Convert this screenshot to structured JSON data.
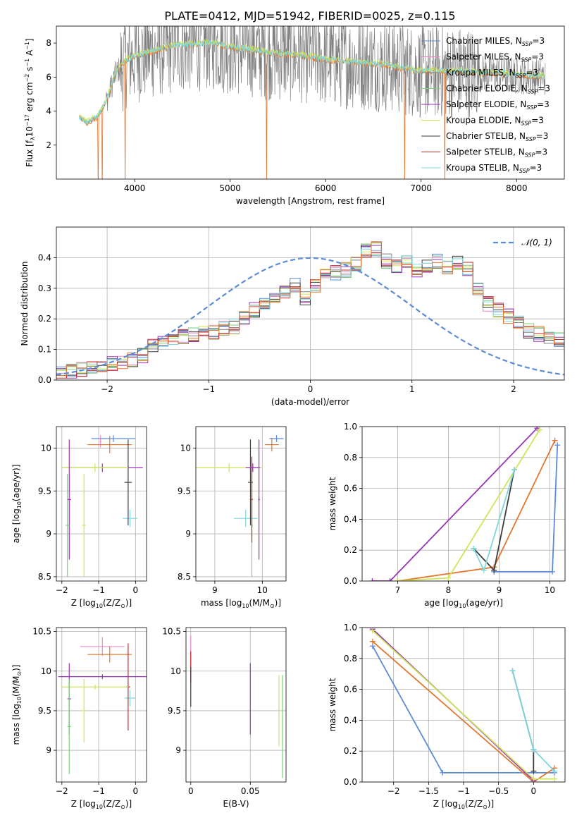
{
  "figure_title": "PLATE=0412, MJD=51942, FIBERID=0025, z=0.115",
  "colors": {
    "Chabrier MILES": "#5b8bd9",
    "Salpeter MILES": "#e88ac8",
    "Kroupa MILES": "#7f7f7f",
    "Chabrier ELODIE": "#7ed07e",
    "Salpeter ELODIE": "#9a35b8",
    "Kroupa ELODIE": "#cde65b",
    "Chabrier STELIB": "#3d3d3d",
    "Salpeter STELIB": "#c42a2a",
    "Kroupa STELIB": "#7dd7de",
    "orange": "#e4772f",
    "data": "#808080",
    "normal": "#5b8bd9"
  },
  "chart_data": [
    {
      "id": "spectrum",
      "type": "line",
      "xlabel": "wavelength [Angstrom, rest frame]",
      "ylabel_parts": [
        "Flux [f",
        "λ",
        "10",
        "−17",
        " erg cm",
        "−2",
        " s",
        "−1",
        " A",
        "−1",
        "]"
      ],
      "xlim": [
        3180,
        8500
      ],
      "ylim": [
        0,
        9
      ],
      "xticks": [
        4000,
        5000,
        6000,
        7000,
        8000
      ],
      "yticks": [
        2,
        4,
        6,
        8
      ],
      "grid": false,
      "legend_position": "top-right",
      "legend": [
        {
          "label": "Chabrier MILES, N",
          "sub": "SSP",
          "suffix": "=3",
          "color_key": "Chabrier MILES"
        },
        {
          "label": "Salpeter MILES, N",
          "sub": "SSP",
          "suffix": "=3",
          "color_key": "Salpeter MILES"
        },
        {
          "label": "Kroupa MILES, N",
          "sub": "SSP",
          "suffix": "=3",
          "color_key": "Kroupa MILES"
        },
        {
          "label": "Chabrier ELODIE, N",
          "sub": "SSP",
          "suffix": "=3",
          "color_key": "Chabrier ELODIE"
        },
        {
          "label": "Salpeter ELODIE, N",
          "sub": "SSP",
          "suffix": "=3",
          "color_key": "Salpeter ELODIE"
        },
        {
          "label": "Kroupa ELODIE, N",
          "sub": "SSP",
          "suffix": "=3",
          "color_key": "Kroupa ELODIE"
        },
        {
          "label": "Chabrier STELIB, N",
          "sub": "SSP",
          "suffix": "=3",
          "color_key": "Chabrier STELIB"
        },
        {
          "label": "Salpeter STELIB, N",
          "sub": "SSP",
          "suffix": "=3",
          "color_key": "Salpeter STELIB"
        },
        {
          "label": "Kroupa STELIB, N",
          "sub": "SSP",
          "suffix": "=3",
          "color_key": "Kroupa STELIB"
        }
      ],
      "continuum": {
        "x": [
          3400,
          3500,
          3600,
          3700,
          3800,
          3900,
          4000,
          4200,
          4400,
          4600,
          4800,
          5000,
          5200,
          5400,
          5600,
          5800,
          6000,
          6200,
          6400,
          6600,
          6800,
          7000,
          7200,
          7400,
          7600,
          7800,
          8000,
          8300
        ],
        "y": [
          3.7,
          3.3,
          3.6,
          4.5,
          6.2,
          6.9,
          7.2,
          7.5,
          7.8,
          7.9,
          8.0,
          7.7,
          7.6,
          7.4,
          7.3,
          7.2,
          7.0,
          6.9,
          6.8,
          6.7,
          6.5,
          6.3,
          6.3,
          6.3,
          6.2,
          6.2,
          6.1,
          6.0
        ]
      },
      "data_noise_amplitude": 2.8,
      "model_drops_x": [
        3620,
        3660,
        3900,
        5380,
        6830,
        7250
      ]
    },
    {
      "id": "residuals",
      "type": "area",
      "xlabel": "(data-model)/error",
      "ylabel": "Normed distribution",
      "xlim": [
        -2.5,
        2.5
      ],
      "ylim": [
        0,
        0.5
      ],
      "xticks": [
        -2,
        -1,
        0,
        1,
        2
      ],
      "yticks": [
        0.0,
        0.1,
        0.2,
        0.3,
        0.4
      ],
      "grid": true,
      "legend_position": "top-right",
      "legend_label": "𝒩(0, 1)",
      "bin_width": 0.1,
      "bins_start": -2.5,
      "values": [
        0.025,
        0.03,
        0.035,
        0.04,
        0.05,
        0.055,
        0.06,
        0.065,
        0.08,
        0.11,
        0.12,
        0.13,
        0.14,
        0.15,
        0.16,
        0.155,
        0.17,
        0.175,
        0.2,
        0.23,
        0.25,
        0.27,
        0.29,
        0.31,
        0.27,
        0.31,
        0.34,
        0.35,
        0.36,
        0.38,
        0.42,
        0.43,
        0.39,
        0.37,
        0.39,
        0.36,
        0.37,
        0.39,
        0.37,
        0.38,
        0.36,
        0.3,
        0.25,
        0.23,
        0.21,
        0.19,
        0.16,
        0.15,
        0.14,
        0.13,
        0.11,
        0.1,
        0.1,
        0.09,
        0.08,
        0.06,
        0.055,
        0.05,
        0.06,
        0.04,
        0.03,
        0.025
      ],
      "normal_mu": 0,
      "normal_sigma": 1
    },
    {
      "id": "age-vs-Z",
      "type": "scatter",
      "xlabel_parts": [
        "Z [log",
        "10",
        "(Z/Z",
        "⊙",
        ")]"
      ],
      "ylabel_parts": [
        "age  [log",
        "10",
        "(age/yr)]"
      ],
      "xlim": [
        -2.15,
        0.3
      ],
      "ylim": [
        8.45,
        10.25
      ],
      "xticks": [
        -2,
        -1,
        0
      ],
      "yticks": [
        8.5,
        9.0,
        9.5,
        10.0
      ],
      "grid": true,
      "errorbars": [
        {
          "x": -0.6,
          "y": 10.11,
          "xerr": 0.6,
          "yerr": 0.04,
          "color_key": "Chabrier MILES"
        },
        {
          "x": -0.7,
          "y": 10.04,
          "xerr": 0.6,
          "yerr": 0.1,
          "color_key": "orange"
        },
        {
          "x": -0.15,
          "y": 9.18,
          "xerr": 0.2,
          "yerr": 0.1,
          "color_key": "Kroupa STELIB"
        },
        {
          "x": -0.2,
          "y": 9.6,
          "xerr": 0.1,
          "yerr": 0.5,
          "color_key": "Chabrier STELIB"
        },
        {
          "x": -0.9,
          "y": 9.77,
          "xerr": 1.1,
          "yerr": 0.05,
          "color_key": "Salpeter ELODIE"
        },
        {
          "x": -1.1,
          "y": 9.77,
          "xerr": 0.9,
          "yerr": 0.05,
          "color_key": "Kroupa ELODIE"
        },
        {
          "x": -1.8,
          "y": 9.4,
          "xerr": 0.05,
          "yerr": 0.7,
          "color_key": "Salpeter ELODIE"
        },
        {
          "x": -1.85,
          "y": 9.1,
          "xerr": 0.05,
          "yerr": 0.6,
          "color_key": "Chabrier ELODIE"
        },
        {
          "x": -1.4,
          "y": 9.1,
          "xerr": 0.05,
          "yerr": 0.6,
          "color_key": "Kroupa ELODIE"
        },
        {
          "x": -0.95,
          "y": 10.08,
          "xerr": 0.02,
          "yerr": 0.07,
          "color_key": "Salpeter MILES"
        }
      ]
    },
    {
      "id": "age-vs-mass",
      "type": "scatter",
      "xlabel_parts": [
        "mass [log",
        "10",
        "(M/M",
        "⊙",
        ")]"
      ],
      "ylabel": "",
      "xlim": [
        8.6,
        10.5
      ],
      "ylim": [
        8.45,
        10.25
      ],
      "xticks": [
        9,
        10
      ],
      "yticks": [
        8.5,
        9.0,
        9.5,
        10.0
      ],
      "grid": true,
      "errorbars": [
        {
          "x": 10.3,
          "y": 10.11,
          "xerr": 0.15,
          "yerr": 0.04,
          "color_key": "Chabrier MILES"
        },
        {
          "x": 10.2,
          "y": 10.04,
          "xerr": 0.15,
          "yerr": 0.08,
          "color_key": "orange"
        },
        {
          "x": 9.65,
          "y": 9.18,
          "xerr": 0.25,
          "yerr": 0.1,
          "color_key": "Kroupa STELIB"
        },
        {
          "x": 9.75,
          "y": 9.6,
          "xerr": 0.05,
          "yerr": 0.5,
          "color_key": "Chabrier STELIB"
        },
        {
          "x": 9.3,
          "y": 9.77,
          "xerr": 0.7,
          "yerr": 0.05,
          "color_key": "Kroupa ELODIE"
        },
        {
          "x": 9.8,
          "y": 9.77,
          "xerr": 0.15,
          "yerr": 0.05,
          "color_key": "Salpeter ELODIE"
        },
        {
          "x": 9.93,
          "y": 9.4,
          "xerr": 0.02,
          "yerr": 0.7,
          "color_key": "Salpeter ELODIE"
        },
        {
          "x": 9.78,
          "y": 9.1,
          "xerr": 0.02,
          "yerr": 0.6,
          "color_key": "Chabrier ELODIE"
        },
        {
          "x": 9.78,
          "y": 9.4,
          "xerr": 0.02,
          "yerr": 0.5,
          "color_key": "Salpeter STELIB"
        }
      ]
    },
    {
      "id": "massweight-vs-age",
      "type": "line",
      "xlabel_parts": [
        "age  [log",
        "10",
        "(age/yr)]"
      ],
      "ylabel": "mass weight",
      "xlim": [
        6.3,
        10.3
      ],
      "ylim": [
        0,
        1
      ],
      "xticks": [
        7,
        8,
        9,
        10
      ],
      "yticks": [
        0.0,
        0.2,
        0.4,
        0.6,
        0.8,
        1.0
      ],
      "grid": true,
      "series": [
        {
          "color_key": "Chabrier MILES",
          "x": [
            10.15,
            10.05,
            8.9
          ],
          "y": [
            0.88,
            0.06,
            0.06
          ]
        },
        {
          "color_key": "orange",
          "x": [
            10.1,
            8.9,
            7.0
          ],
          "y": [
            0.91,
            0.09,
            0.0
          ]
        },
        {
          "color_key": "Salpeter ELODIE",
          "x": [
            9.75,
            6.85,
            6.5
          ],
          "y": [
            0.99,
            0.0,
            0.0
          ]
        },
        {
          "color_key": "Kroupa ELODIE",
          "x": [
            9.8,
            8.0,
            7.0
          ],
          "y": [
            0.98,
            0.02,
            0.0
          ]
        },
        {
          "color_key": "Chabrier STELIB",
          "x": [
            9.3,
            8.9,
            8.5
          ],
          "y": [
            0.72,
            0.07,
            0.21
          ]
        },
        {
          "color_key": "Kroupa STELIB",
          "x": [
            9.3,
            8.7,
            8.5
          ],
          "y": [
            0.72,
            0.07,
            0.21
          ]
        }
      ]
    },
    {
      "id": "mass-vs-Z",
      "type": "scatter",
      "xlabel_parts": [
        "Z [log",
        "10",
        "(Z/Z",
        "⊙",
        ")]"
      ],
      "ylabel_parts": [
        "mass [log",
        "10",
        "(M/M",
        "⊙",
        ")]"
      ],
      "xlim": [
        -2.15,
        0.3
      ],
      "ylim": [
        8.6,
        10.55
      ],
      "xticks": [
        -2,
        -1,
        0
      ],
      "yticks": [
        9.0,
        9.5,
        10.0,
        10.5
      ],
      "grid": true,
      "errorbars": [
        {
          "x": -0.9,
          "y": 10.31,
          "xerr": 0.6,
          "yerr": 0.12,
          "color_key": "Salpeter MILES"
        },
        {
          "x": -0.7,
          "y": 10.21,
          "xerr": 0.6,
          "yerr": 0.1,
          "color_key": "orange"
        },
        {
          "x": -0.15,
          "y": 9.66,
          "xerr": 0.15,
          "yerr": 0.1,
          "color_key": "Kroupa STELIB"
        },
        {
          "x": -0.2,
          "y": 9.8,
          "xerr": 0.05,
          "yerr": 0.55,
          "color_key": "Salpeter STELIB"
        },
        {
          "x": -0.9,
          "y": 9.93,
          "xerr": 1.2,
          "yerr": 0.03,
          "color_key": "Salpeter ELODIE"
        },
        {
          "x": -1.1,
          "y": 9.8,
          "xerr": 0.9,
          "yerr": 0.03,
          "color_key": "Kroupa ELODIE"
        },
        {
          "x": -1.8,
          "y": 9.65,
          "xerr": 0.05,
          "yerr": 0.45,
          "color_key": "Salpeter ELODIE"
        },
        {
          "x": -1.8,
          "y": 9.3,
          "xerr": 0.05,
          "yerr": 0.6,
          "color_key": "Chabrier ELODIE"
        },
        {
          "x": -1.4,
          "y": 9.5,
          "xerr": 0.05,
          "yerr": 0.4,
          "color_key": "Kroupa ELODIE"
        }
      ]
    },
    {
      "id": "mass-vs-ebv",
      "type": "scatter",
      "xlabel": "E(B-V)",
      "ylabel": "",
      "xlim": [
        -0.004,
        0.08
      ],
      "ylim": [
        8.6,
        10.55
      ],
      "xticks": [
        0.0,
        0.05
      ],
      "yticks": [
        9.0,
        9.5,
        10.0,
        10.5
      ],
      "grid": true,
      "errorbars": [
        {
          "x": 0.0,
          "y": 10.2,
          "xerr": 0,
          "yerr": 0.25,
          "color_key": "Salpeter MILES"
        },
        {
          "x": 0.0,
          "y": 10.05,
          "xerr": 0,
          "yerr": 0.2,
          "color_key": "Salpeter STELIB"
        },
        {
          "x": 0.0,
          "y": 9.8,
          "xerr": 0,
          "yerr": 0.25,
          "color_key": "Chabrier STELIB"
        },
        {
          "x": 0.05,
          "y": 9.65,
          "xerr": 0,
          "yerr": 0.45,
          "color_key": "Salpeter ELODIE"
        },
        {
          "x": 0.074,
          "y": 9.5,
          "xerr": 0,
          "yerr": 0.45,
          "color_key": "Kroupa ELODIE"
        },
        {
          "x": 0.077,
          "y": 9.3,
          "xerr": 0,
          "yerr": 0.65,
          "color_key": "Chabrier ELODIE"
        }
      ]
    },
    {
      "id": "massweight-vs-Z",
      "type": "line",
      "xlabel_parts": [
        "Z [log",
        "10",
        "(Z/Z",
        "⊙",
        ")]"
      ],
      "ylabel": "mass weight",
      "xlim": [
        -2.45,
        0.45
      ],
      "ylim": [
        0,
        1
      ],
      "xticks": [
        -2.0,
        -1.5,
        -1.0,
        -0.5,
        0.0
      ],
      "yticks": [
        0.0,
        0.2,
        0.4,
        0.6,
        0.8,
        1.0
      ],
      "grid": true,
      "series": [
        {
          "color_key": "Chabrier MILES",
          "x": [
            -2.3,
            -1.3,
            0.3
          ],
          "y": [
            0.88,
            0.06,
            0.06
          ]
        },
        {
          "color_key": "orange",
          "x": [
            -2.3,
            0.0,
            0.3
          ],
          "y": [
            0.91,
            0.0,
            0.09
          ]
        },
        {
          "color_key": "Salpeter ELODIE",
          "x": [
            -2.3,
            0.0
          ],
          "y": [
            0.99,
            0.01
          ]
        },
        {
          "color_key": "Kroupa ELODIE",
          "x": [
            -2.3,
            0.0,
            0.3
          ],
          "y": [
            0.98,
            0.02,
            0.02
          ]
        },
        {
          "color_key": "Chabrier STELIB",
          "x": [
            -0.3,
            0.0,
            0.0
          ],
          "y": [
            0.72,
            0.21,
            0.07
          ]
        },
        {
          "color_key": "Kroupa STELIB",
          "x": [
            -0.3,
            0.0,
            0.3
          ],
          "y": [
            0.72,
            0.21,
            0.07
          ]
        }
      ]
    }
  ]
}
